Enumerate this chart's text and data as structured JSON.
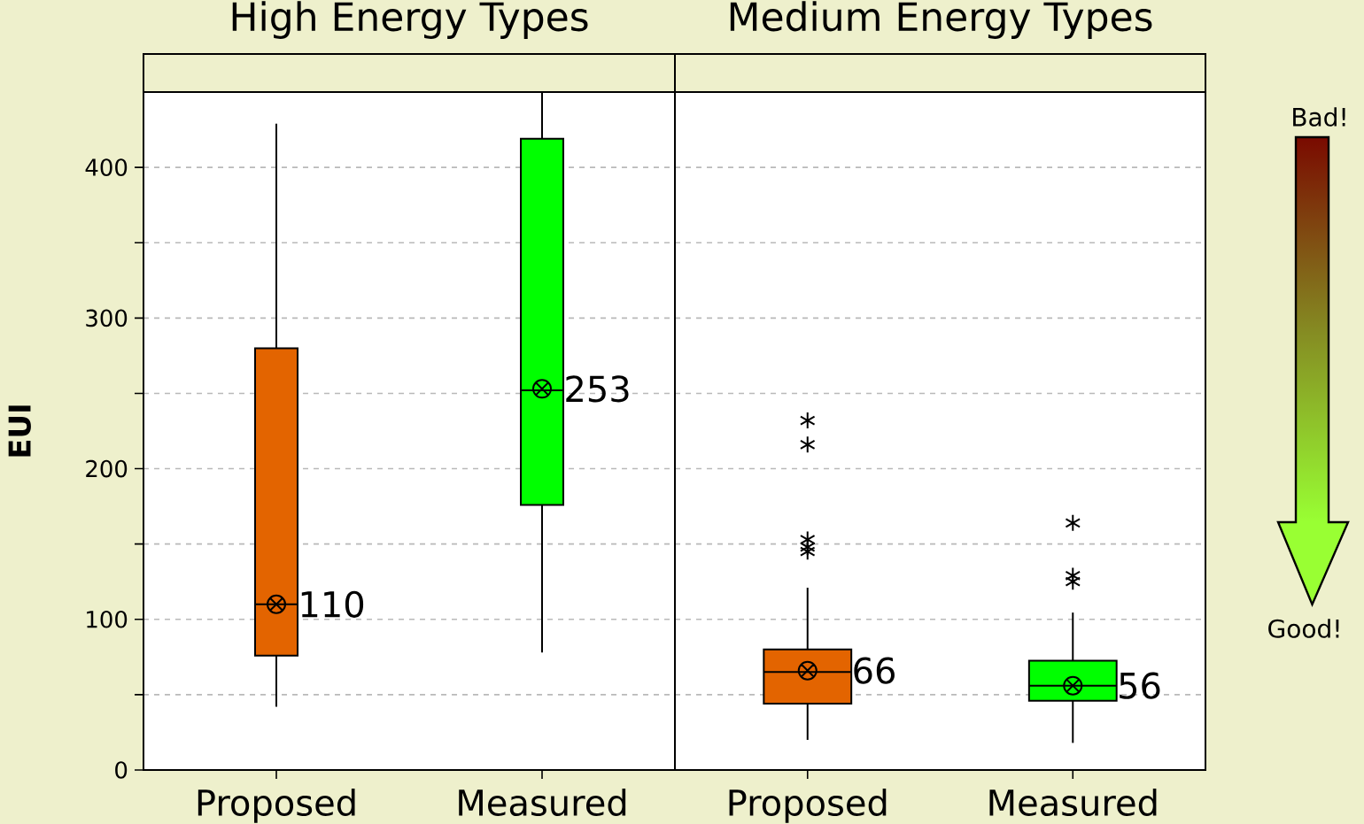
{
  "chart_data": [
    {
      "type": "box",
      "title": "High Energy Types",
      "ylabel": "EUI",
      "categories": [
        "Proposed",
        "Measured"
      ],
      "colors": [
        "#e36400",
        "#00ff00"
      ],
      "boxes": [
        {
          "low": 42,
          "q1": 76,
          "median": 110,
          "q3": 280,
          "high": 429,
          "mean": 110
        },
        {
          "low": 78,
          "q1": 176,
          "median": 252,
          "q3": 419,
          "high": 450,
          "mean": 253
        }
      ],
      "ylim": [
        0,
        450
      ],
      "yticks": [
        0,
        {
          "value": 50,
          "label": null
        },
        100,
        {
          "value": 150,
          "label": null
        },
        200,
        {
          "value": 250,
          "label": null
        },
        300,
        {
          "value": 350,
          "label": null
        },
        400
      ],
      "grid": "y",
      "marker": "star",
      "annotations": [
        {
          "text": "110",
          "x": "Proposed",
          "y": 110
        },
        {
          "text": "253",
          "x": "Measured",
          "y": 253
        }
      ]
    },
    {
      "type": "box",
      "title": "Medium  Energy Types",
      "categories": [
        "Proposed",
        "Measured"
      ],
      "colors": [
        "#e36400",
        "#00ff00"
      ],
      "boxes": [
        {
          "low": 20,
          "q1": 44,
          "median": 65,
          "q3": 80,
          "high": 121,
          "mean": 66,
          "outliers": [
            232,
            216,
            153,
            148,
            145
          ]
        },
        {
          "low": 18,
          "q1": 46,
          "median": 56,
          "q3": 72.5,
          "high": 104.5,
          "mean": 56,
          "outliers": [
            164,
            129,
            125
          ]
        }
      ],
      "ylim": [
        0,
        450
      ],
      "yticks": [
        0,
        {
          "value": 50,
          "label": null
        },
        100,
        {
          "value": 150,
          "label": null
        },
        200,
        {
          "value": 250,
          "label": null
        },
        300,
        {
          "value": 350,
          "label": null
        },
        400
      ],
      "grid": "y",
      "marker": "star",
      "tick_labels": "x",
      "annotations": [
        {
          "text": "66",
          "x": "Proposed",
          "y": 66
        },
        {
          "text": "56",
          "x": "Measured",
          "y": 56
        },
        "Bad!",
        "Good!"
      ]
    }
  ]
}
